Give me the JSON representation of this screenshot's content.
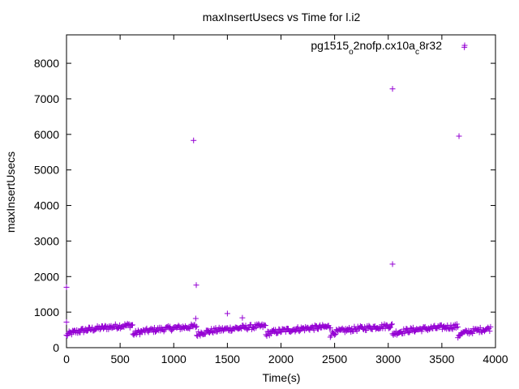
{
  "chart_data": {
    "type": "scatter",
    "title": "maxInsertUsecs vs Time for l.i2",
    "xlabel": "Time(s)",
    "ylabel": "maxInsertUsecs",
    "xlim": [
      0,
      4000
    ],
    "ylim": [
      0,
      8800
    ],
    "xticks": [
      0,
      500,
      1000,
      1500,
      2000,
      2500,
      3000,
      3500,
      4000
    ],
    "yticks": [
      0,
      1000,
      2000,
      3000,
      4000,
      5000,
      6000,
      7000,
      8000
    ],
    "grid": false,
    "legend_position": "top-right",
    "marker": "+",
    "series": [
      {
        "name_parts": [
          "pg1515",
          "o",
          "2nofp.cx10a",
          "c",
          "8r32"
        ],
        "color": "#9400d3",
        "outliers": [
          [
            0,
            1700
          ],
          [
            0,
            720
          ],
          [
            1185,
            5830
          ],
          [
            1210,
            1760
          ],
          [
            1205,
            820
          ],
          [
            1500,
            960
          ],
          [
            1640,
            840
          ],
          [
            3040,
            7280
          ],
          [
            3040,
            2350
          ],
          [
            3660,
            5950
          ],
          [
            3710,
            8450
          ]
        ],
        "segments": [
          {
            "t0": 0,
            "t1": 620,
            "y0": 330,
            "y1": 640
          },
          {
            "t0": 620,
            "t1": 1215,
            "y0": 360,
            "y1": 600
          },
          {
            "t0": 1215,
            "t1": 1860,
            "y0": 350,
            "y1": 610
          },
          {
            "t0": 1860,
            "t1": 2460,
            "y0": 360,
            "y1": 590
          },
          {
            "t0": 2460,
            "t1": 3040,
            "y0": 360,
            "y1": 620
          },
          {
            "t0": 3040,
            "t1": 3650,
            "y0": 370,
            "y1": 600
          },
          {
            "t0": 3650,
            "t1": 3960,
            "y0": 320,
            "y1": 540
          }
        ],
        "sample_step": 8,
        "noise": 70
      }
    ]
  }
}
